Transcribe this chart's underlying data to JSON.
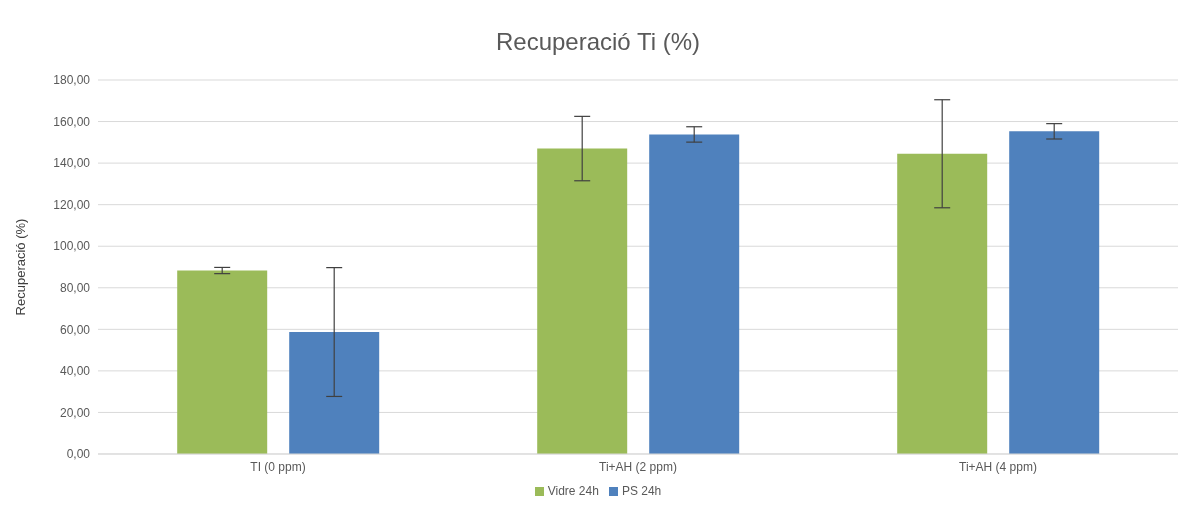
{
  "chart_data": {
    "type": "bar",
    "title": "Recuperació Ti (%)",
    "ylabel": "Recuperació (%)",
    "categories": [
      "TI (0 ppm)",
      "Ti+AH (2 ppm)",
      "Ti+AH (4 ppm)"
    ],
    "series": [
      {
        "name": "Vidre 24h",
        "color": "#9bbb59",
        "values": [
          88.3,
          147,
          144.5
        ],
        "errors": [
          1.5,
          15.5,
          26
        ]
      },
      {
        "name": "PS 24h",
        "color": "#4f81bd",
        "values": [
          58.7,
          153.8,
          155.3
        ],
        "errors": [
          31,
          3.7,
          3.7
        ]
      }
    ],
    "ylim": [
      0,
      180
    ],
    "yticks": [
      {
        "value": 0,
        "label": "0,00"
      },
      {
        "value": 20,
        "label": "20,00"
      },
      {
        "value": 40,
        "label": "40,00"
      },
      {
        "value": 60,
        "label": "60,00"
      },
      {
        "value": 80,
        "label": "80,00"
      },
      {
        "value": 100,
        "label": "100,00"
      },
      {
        "value": 120,
        "label": "120,00"
      },
      {
        "value": 140,
        "label": "140,00"
      },
      {
        "value": 160,
        "label": "160,00"
      },
      {
        "value": 180,
        "label": "180,00"
      }
    ],
    "grid": "y",
    "legend": "bottom"
  }
}
